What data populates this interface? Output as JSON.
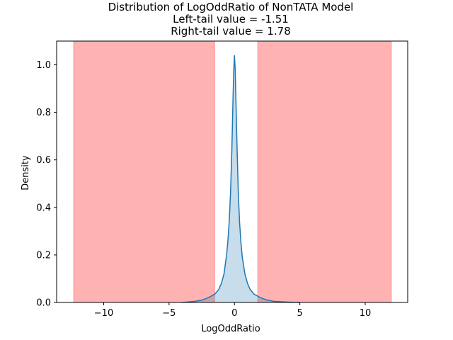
{
  "chart_data": {
    "type": "area",
    "title_lines": [
      "Distribution of LogOddRatio of NonTATA Model",
      "Left-tail value = -1.51",
      "Right-tail value = 1.78"
    ],
    "xlabel": "LogOddRatio",
    "ylabel": "Density",
    "xlim": [
      -13.6,
      13.25
    ],
    "ylim": [
      0,
      1.1
    ],
    "x_ticks": [
      -10,
      -5,
      0,
      5,
      10
    ],
    "x_tick_labels": [
      "−10",
      "−5",
      "0",
      "5",
      "10"
    ],
    "y_ticks": [
      0.0,
      0.2,
      0.4,
      0.6,
      0.8,
      1.0
    ],
    "y_tick_labels": [
      "0.0",
      "0.2",
      "0.4",
      "0.6",
      "0.8",
      "1.0"
    ],
    "grid": false,
    "shaded_regions": [
      {
        "x_start": -12.3,
        "x_end": -1.51,
        "color": "#ff0000",
        "opacity": 0.3
      },
      {
        "x_start": 1.78,
        "x_end": 12.0,
        "color": "#ff0000",
        "opacity": 0.3
      }
    ],
    "series": [
      {
        "color": "#1f77b4",
        "fill_opacity": 0.25,
        "x": [
          -4.0,
          -3.0,
          -2.5,
          -2.0,
          -1.5,
          -1.2,
          -1.0,
          -0.8,
          -0.6,
          -0.5,
          -0.4,
          -0.3,
          -0.2,
          -0.1,
          -0.05,
          0.0,
          0.05,
          0.1,
          0.2,
          0.3,
          0.4,
          0.5,
          0.6,
          0.8,
          1.0,
          1.2,
          1.5,
          2.0,
          2.5,
          3.0,
          4.0,
          5.0
        ],
        "y": [
          0.0,
          0.005,
          0.01,
          0.02,
          0.035,
          0.055,
          0.08,
          0.12,
          0.2,
          0.26,
          0.34,
          0.46,
          0.64,
          0.88,
          0.98,
          1.04,
          0.99,
          0.88,
          0.65,
          0.45,
          0.33,
          0.25,
          0.19,
          0.12,
          0.08,
          0.055,
          0.035,
          0.02,
          0.01,
          0.005,
          0.002,
          0.0
        ]
      }
    ]
  }
}
